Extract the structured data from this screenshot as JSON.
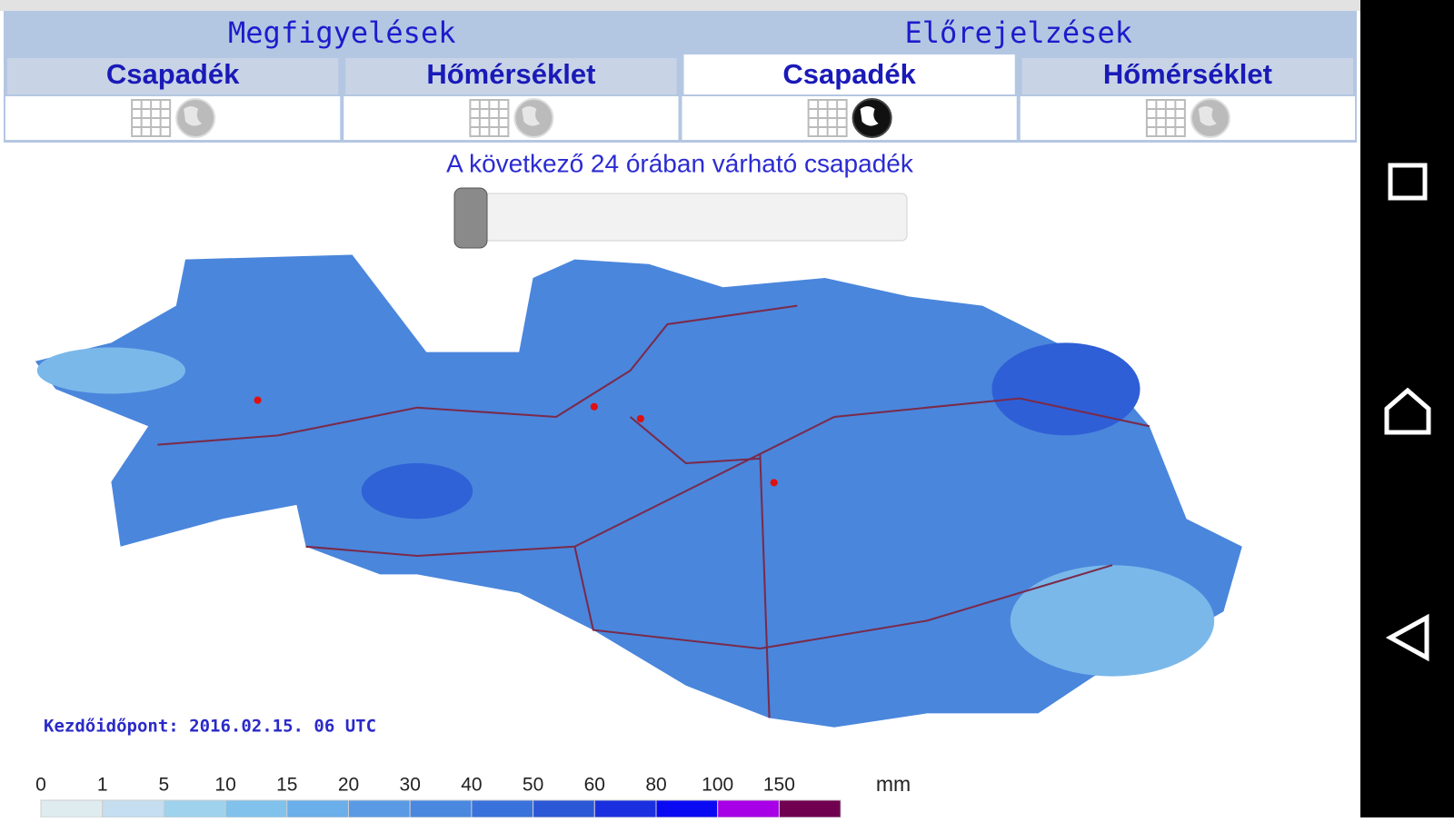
{
  "header": {
    "groups": [
      "Megfigyelések",
      "Előrejelzések"
    ],
    "tabs": [
      "Csapadék",
      "Hőmérséklet",
      "Csapadék",
      "Hőmérséklet"
    ],
    "active_tab": 2
  },
  "subtitle": "A következő 24 órában várható csapadék",
  "timestamp": "Kezdőidőpont: 2016.02.15. 06 UTC",
  "legend": {
    "labels": [
      0,
      1,
      5,
      10,
      15,
      20,
      30,
      40,
      50,
      60,
      80,
      100,
      150
    ],
    "unit": "mm",
    "colors": [
      "#dfecef",
      "#c4def0",
      "#9fd2ec",
      "#80c2ec",
      "#6aaeea",
      "#5a9ae4",
      "#4a88e0",
      "#3a72dc",
      "#2b58d6",
      "#1a30e0",
      "#0a0af2",
      "#a800e6",
      "#700050"
    ]
  }
}
